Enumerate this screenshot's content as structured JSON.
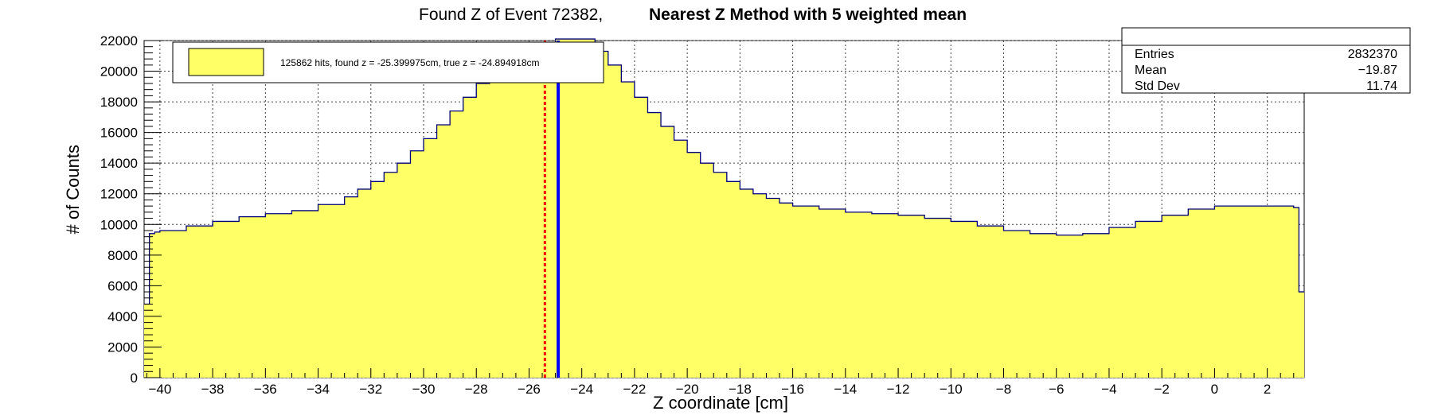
{
  "title": {
    "part1": "Found Z of Event 72382,",
    "part2": "Nearest Z Method with 5 weighted mean"
  },
  "stats_box": {
    "rows": [
      {
        "label": "Entries",
        "value": "2832370"
      },
      {
        "label": "Mean",
        "value": "−19.87"
      },
      {
        "label": "Std Dev",
        "value": "11.74"
      }
    ]
  },
  "legend": {
    "entry": "125862 hits, found z = -25.399975cm, true z = -24.894918cm",
    "fill_color": "#ffff66"
  },
  "colors": {
    "fill": "#ffff66",
    "outline": "#00007a",
    "true_line": "#0000ff",
    "found_line": "#ff0000"
  },
  "chart_data": {
    "type": "area",
    "title": "Found Z of Event 72382,   Nearest Z Method with 5 weighted mean",
    "xlabel": "Z coordinate [cm]",
    "ylabel": "# of Counts",
    "xlim": [
      -40.6,
      3.4
    ],
    "ylim": [
      0,
      22000
    ],
    "x_ticks": [
      -40,
      -38,
      -36,
      -34,
      -32,
      -30,
      -28,
      -26,
      -24,
      -22,
      -20,
      -18,
      -16,
      -14,
      -12,
      -10,
      -8,
      -6,
      -4,
      -2,
      0,
      2
    ],
    "y_ticks": [
      0,
      2000,
      4000,
      6000,
      8000,
      10000,
      12000,
      14000,
      16000,
      18000,
      20000,
      22000
    ],
    "grid": true,
    "legend_position": "top-left",
    "series": [
      {
        "x": [
          -40.6,
          -40.4,
          -40.2,
          -40,
          -39,
          -38,
          -37,
          -36,
          -35,
          -34,
          -33,
          -32.5,
          -32,
          -31.5,
          -31,
          -30.5,
          -30,
          -29.5,
          -29,
          -28.5,
          -28,
          -27.5,
          -27,
          -26.5,
          -26,
          -25,
          -24,
          -23.5,
          -23,
          -22.5,
          -22,
          -21.5,
          -21,
          -20.5,
          -20,
          -19.5,
          -19,
          -18.5,
          -18,
          -17.5,
          -17,
          -16.5,
          -16,
          -15,
          -14,
          -13,
          -12,
          -11,
          -10,
          -9,
          -8,
          -7,
          -6,
          -5,
          -4,
          -3,
          -2,
          -1,
          0,
          1,
          2,
          2.5,
          3,
          3.2,
          3.4
        ],
        "y": [
          4800,
          9400,
          9500,
          9600,
          9900,
          10200,
          10500,
          10700,
          10900,
          11300,
          11800,
          12300,
          12800,
          13400,
          14000,
          14800,
          15600,
          16500,
          17400,
          18300,
          19200,
          20000,
          20700,
          21300,
          21800,
          22100,
          22100,
          21300,
          20400,
          19300,
          18300,
          17300,
          16400,
          15500,
          14700,
          14000,
          13400,
          12800,
          12300,
          12000,
          11700,
          11400,
          11200,
          11000,
          10800,
          10700,
          10600,
          10400,
          10200,
          9900,
          9600,
          9400,
          9300,
          9400,
          9800,
          10200,
          10600,
          11000,
          11200,
          11200,
          11200,
          11200,
          11100,
          5600,
          5600
        ]
      }
    ],
    "vertical_lines": [
      {
        "label": "found z",
        "x": -25.399975,
        "style": "dashed",
        "color": "#ff0000"
      },
      {
        "label": "true z",
        "x": -24.894918,
        "style": "solid",
        "color": "#0000ff"
      }
    ]
  }
}
